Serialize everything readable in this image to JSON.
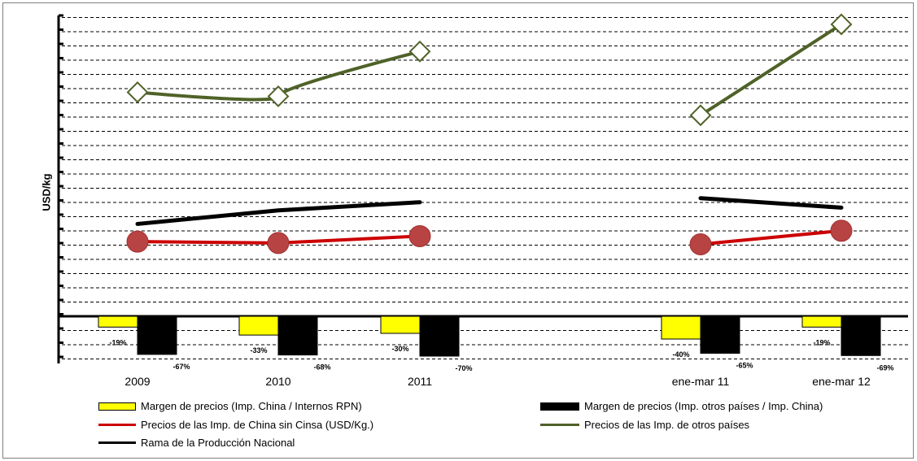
{
  "chart_data": {
    "type": "bar+line",
    "ylabel": "USD/kg",
    "categories": [
      "2009",
      "2010",
      "2011",
      "",
      "ene-mar 11",
      "ene-mar 12"
    ],
    "bar_series": [
      {
        "name": "Margen de precios (Imp. China / Internos RPN)",
        "color": "#ffff00",
        "values": [
          -19,
          -33,
          -30,
          null,
          -40,
          -19
        ],
        "labels": [
          "-19%",
          "-33%",
          "-30%",
          "",
          "-40%",
          "-19%"
        ]
      },
      {
        "name": "Margen de precios (Imp. otros países / Imp. China)",
        "color": "#000000",
        "values": [
          -67,
          -68,
          -70,
          null,
          -65,
          -69
        ],
        "labels": [
          "-67%",
          "-68%",
          "-70%",
          "",
          "-65%",
          "-69%"
        ]
      }
    ],
    "line_series": [
      {
        "name": "Precios de las Imp.  de China sin Cinsa (USD/Kg.)",
        "color": "#cc0000",
        "marker": "circle",
        "values": [
          5.5,
          5.4,
          5.9,
          null,
          5.3,
          6.3
        ]
      },
      {
        "name": "Precios de las Imp. de otros países",
        "color": "#4f6228",
        "marker": "diamond",
        "values": [
          16.5,
          16.2,
          19.5,
          null,
          14.8,
          21.5
        ]
      },
      {
        "name": "Rama de la Producción Nacional",
        "color": "#000000",
        "marker": "none",
        "values": [
          6.8,
          7.8,
          8.4,
          null,
          8.7,
          8.0
        ]
      }
    ],
    "legend": [
      "Margen de precios (Imp. China / Internos RPN)",
      "Margen de precios (Imp. otros países / Imp. China)",
      "Precios de las Imp.  de China sin Cinsa (USD/Kg.)",
      "Precios de las Imp. de otros países",
      "Rama de la Producción Nacional"
    ],
    "grid": true,
    "legend_position": "bottom"
  }
}
